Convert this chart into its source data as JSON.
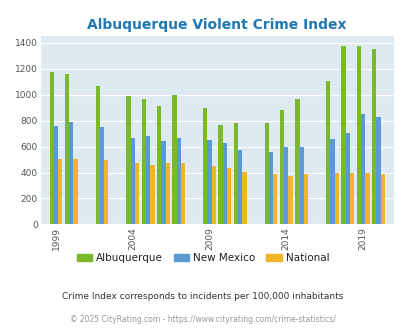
{
  "title": "Albuquerque Violent Crime Index",
  "years": [
    1999,
    2000,
    2002,
    2004,
    2005,
    2006,
    2007,
    2009,
    2010,
    2011,
    2013,
    2014,
    2015,
    2017,
    2018,
    2019,
    2020
  ],
  "albuquerque": [
    1175,
    1160,
    1070,
    990,
    965,
    915,
    1000,
    895,
    770,
    785,
    780,
    885,
    970,
    1105,
    1375,
    1375,
    1355
  ],
  "new_mexico": [
    760,
    790,
    750,
    665,
    685,
    645,
    665,
    650,
    625,
    570,
    560,
    600,
    600,
    655,
    705,
    850,
    825
  ],
  "national": [
    505,
    505,
    495,
    475,
    460,
    475,
    470,
    450,
    435,
    405,
    390,
    375,
    385,
    395,
    400,
    395,
    385
  ],
  "color_abq": "#7aba2a",
  "color_nm": "#5b9bd5",
  "color_nat": "#f2b428",
  "title_color": "#1f78b4",
  "bg_color": "#deeaf1",
  "ylim": [
    0,
    1450
  ],
  "yticks": [
    0,
    200,
    400,
    600,
    800,
    1000,
    1200,
    1400
  ],
  "xlabel_ticks": [
    1999,
    2004,
    2009,
    2014,
    2019
  ],
  "subtitle": "Crime Index corresponds to incidents per 100,000 inhabitants",
  "footer": "© 2025 CityRating.com - https://www.cityrating.com/crime-statistics/",
  "legend_labels": [
    "Albuquerque",
    "New Mexico",
    "National"
  ]
}
